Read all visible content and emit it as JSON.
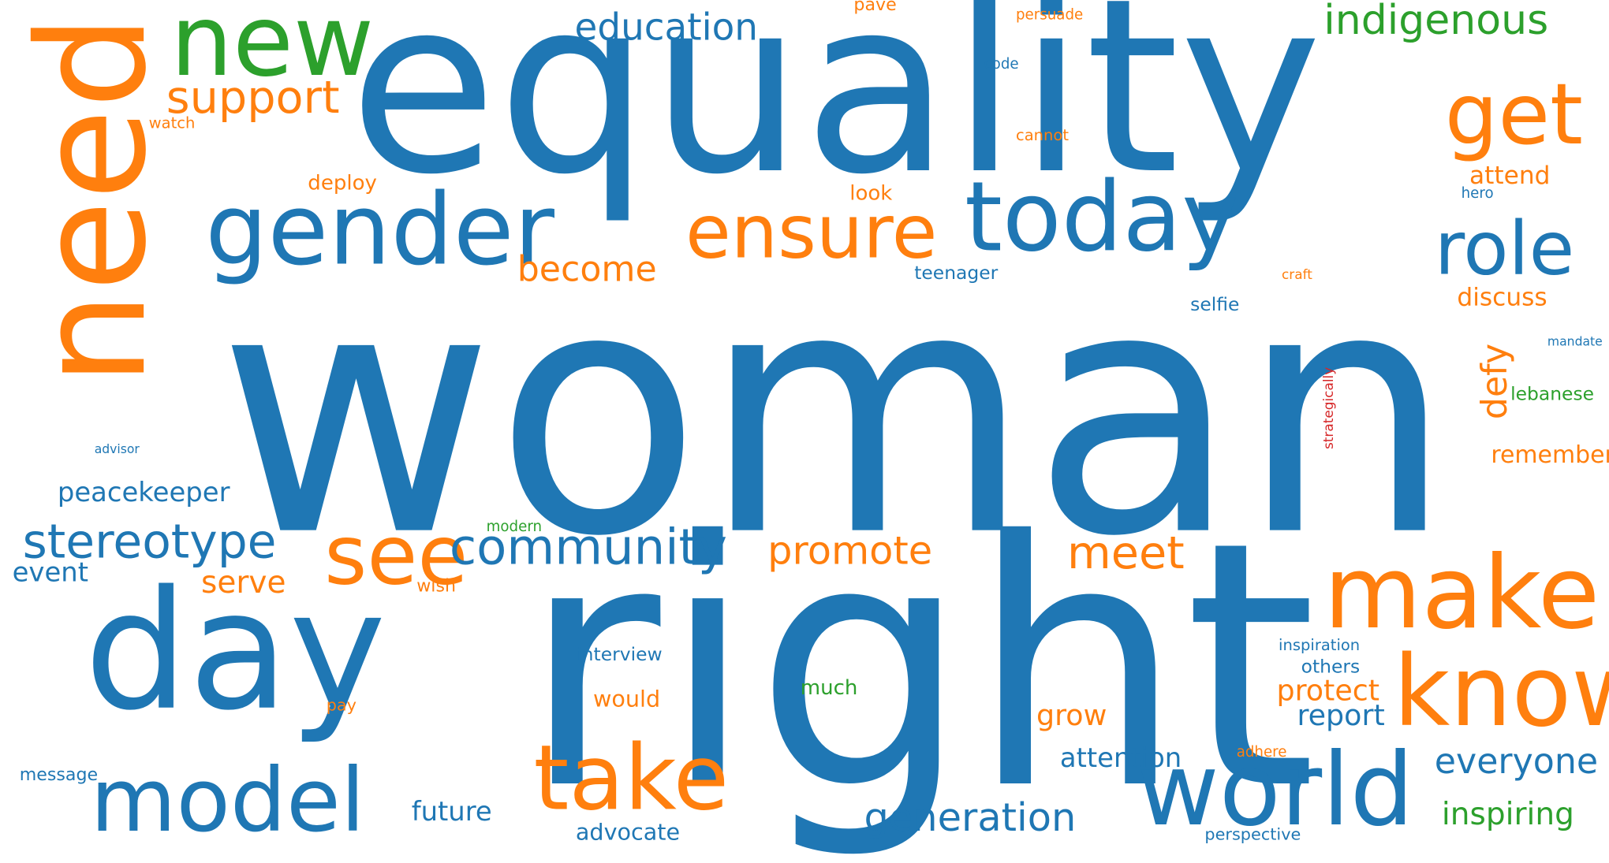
{
  "palette": {
    "blue": "#1f77b4",
    "orange": "#ff7f0e",
    "green": "#2ca02c",
    "red": "#d62728"
  },
  "words": {
    "woman": "woman",
    "right": "right",
    "equality": "equality",
    "need": "need",
    "day": "day",
    "gender": "gender",
    "new": "new",
    "today": "today",
    "make": "make",
    "know": "know",
    "world": "world",
    "take": "take",
    "model": "model",
    "see": "see",
    "ensure": "ensure",
    "get": "get",
    "role": "role",
    "community": "community",
    "stereotype": "stereotype",
    "support": "support",
    "indigenous": "indigenous",
    "education": "education",
    "meet": "meet",
    "promote": "promote",
    "generation": "generation",
    "everyone": "everyone",
    "become": "become",
    "peacekeeper": "peacekeeper",
    "serve": "serve",
    "protect": "protect",
    "report": "report",
    "inspiring": "inspiring",
    "attention": "attention",
    "defy": "defy",
    "discuss": "discuss",
    "attend": "attend",
    "remember": "remember",
    "future": "future",
    "advocate": "advocate",
    "event": "event",
    "grow": "grow",
    "would": "would",
    "interview": "interview",
    "deploy": "deploy",
    "look": "look",
    "teenager": "teenager",
    "selfie": "selfie",
    "lebanese": "lebanese",
    "others": "others",
    "much": "much",
    "modern": "modern",
    "wish": "wish",
    "inspiration": "inspiration",
    "pave": "pave",
    "persuade": "persuade",
    "code": "code",
    "cannot": "cannot",
    "watch": "watch",
    "hero": "hero",
    "craft": "craft",
    "mandate": "mandate",
    "advisor": "advisor",
    "pay": "pay",
    "adhere": "adhere",
    "message": "message",
    "perspective": "perspective",
    "strategically": "strategically"
  }
}
